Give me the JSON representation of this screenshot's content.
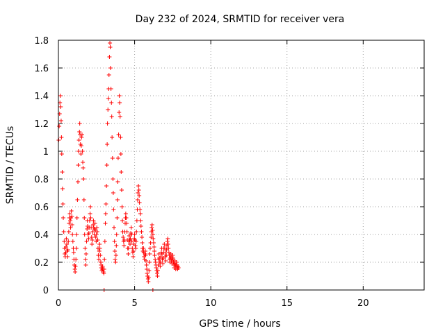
{
  "chart_data": {
    "type": "scatter",
    "title": "Day 232 of 2024, SRMTID for receiver vera",
    "xlabel": "GPS time / hours",
    "ylabel": "SRMTID / TECUs",
    "xlim": [
      0,
      24
    ],
    "ylim": [
      0,
      1.8
    ],
    "xticks": [
      0,
      5,
      10,
      15,
      20
    ],
    "yticks": [
      0,
      0.2,
      0.4,
      0.6,
      0.8,
      1,
      1.2,
      1.4,
      1.6,
      1.8
    ],
    "xtick_labels": [
      "0",
      "5",
      "10",
      "15",
      "20"
    ],
    "ytick_labels": [
      "0",
      "0.2",
      "0.4",
      "0.6",
      "0.8",
      "1",
      "1.2",
      "1.4",
      "1.6",
      "1.8"
    ],
    "grid": true,
    "marker": "+",
    "series": [
      {
        "name": "vera",
        "color": "#ff0000",
        "points": [
          [
            0.02,
            1.08
          ],
          [
            0.05,
            1.18
          ],
          [
            0.08,
            1.27
          ],
          [
            0.1,
            1.35
          ],
          [
            0.12,
            1.4
          ],
          [
            0.15,
            1.32
          ],
          [
            0.18,
            1.22
          ],
          [
            0.2,
            1.1
          ],
          [
            0.22,
            0.98
          ],
          [
            0.25,
            0.85
          ],
          [
            0.27,
            0.73
          ],
          [
            0.3,
            0.62
          ],
          [
            0.32,
            0.52
          ],
          [
            0.35,
            0.42
          ],
          [
            0.38,
            0.35
          ],
          [
            0.4,
            0.3
          ],
          [
            0.42,
            0.26
          ],
          [
            0.45,
            0.24
          ],
          [
            0.48,
            0.27
          ],
          [
            0.5,
            0.31
          ],
          [
            0.52,
            0.37
          ],
          [
            0.55,
            0.33
          ],
          [
            0.58,
            0.28
          ],
          [
            0.6,
            0.24
          ],
          [
            0.62,
            0.29
          ],
          [
            0.65,
            0.35
          ],
          [
            0.68,
            0.42
          ],
          [
            0.7,
            0.48
          ],
          [
            0.72,
            0.52
          ],
          [
            0.75,
            0.55
          ],
          [
            0.78,
            0.5
          ],
          [
            0.8,
            0.45
          ],
          [
            0.82,
            0.52
          ],
          [
            0.85,
            0.57
          ],
          [
            0.88,
            0.53
          ],
          [
            0.9,
            0.47
          ],
          [
            0.92,
            0.4
          ],
          [
            0.95,
            0.35
          ],
          [
            0.98,
            0.3
          ],
          [
            1.0,
            0.27
          ],
          [
            1.02,
            0.22
          ],
          [
            1.05,
            0.18
          ],
          [
            1.08,
            0.15
          ],
          [
            1.1,
            0.13
          ],
          [
            1.12,
            0.17
          ],
          [
            1.15,
            0.22
          ],
          [
            1.18,
            0.3
          ],
          [
            1.2,
            0.4
          ],
          [
            1.22,
            0.52
          ],
          [
            1.25,
            0.65
          ],
          [
            1.28,
            0.78
          ],
          [
            1.3,
            0.9
          ],
          [
            1.32,
            1.0
          ],
          [
            1.35,
            1.08
          ],
          [
            1.38,
            1.14
          ],
          [
            1.4,
            1.2
          ],
          [
            1.42,
            1.12
          ],
          [
            1.45,
            1.05
          ],
          [
            1.48,
            0.98
          ],
          [
            1.5,
            1.04
          ],
          [
            1.52,
            1.1
          ],
          [
            1.55,
            1.12
          ],
          [
            1.58,
            1.0
          ],
          [
            1.6,
            0.92
          ],
          [
            1.62,
            0.88
          ],
          [
            1.65,
            0.8
          ],
          [
            1.68,
            0.65
          ],
          [
            1.7,
            0.52
          ],
          [
            1.72,
            0.4
          ],
          [
            1.75,
            0.3
          ],
          [
            1.78,
            0.22
          ],
          [
            1.8,
            0.18
          ],
          [
            1.82,
            0.26
          ],
          [
            1.85,
            0.35
          ],
          [
            1.88,
            0.44
          ],
          [
            1.9,
            0.5
          ],
          [
            1.92,
            0.46
          ],
          [
            1.95,
            0.4
          ],
          [
            1.98,
            0.37
          ],
          [
            2.0,
            0.41
          ],
          [
            2.02,
            0.45
          ],
          [
            2.05,
            0.5
          ],
          [
            2.08,
            0.55
          ],
          [
            2.1,
            0.6
          ],
          [
            2.12,
            0.52
          ],
          [
            2.15,
            0.45
          ],
          [
            2.18,
            0.38
          ],
          [
            2.2,
            0.33
          ],
          [
            2.22,
            0.36
          ],
          [
            2.25,
            0.42
          ],
          [
            2.28,
            0.47
          ],
          [
            2.3,
            0.5
          ],
          [
            2.32,
            0.45
          ],
          [
            2.35,
            0.4
          ],
          [
            2.38,
            0.44
          ],
          [
            2.4,
            0.48
          ],
          [
            2.42,
            0.43
          ],
          [
            2.45,
            0.38
          ],
          [
            2.48,
            0.35
          ],
          [
            2.5,
            0.4
          ],
          [
            2.52,
            0.45
          ],
          [
            2.55,
            0.42
          ],
          [
            2.58,
            0.36
          ],
          [
            2.6,
            0.3
          ],
          [
            2.62,
            0.25
          ],
          [
            2.65,
            0.22
          ],
          [
            2.68,
            0.28
          ],
          [
            2.7,
            0.33
          ],
          [
            2.72,
            0.3
          ],
          [
            2.75,
            0.25
          ],
          [
            2.78,
            0.2
          ],
          [
            2.8,
            0.18
          ],
          [
            2.82,
            0.16
          ],
          [
            2.85,
            0.14
          ],
          [
            2.88,
            0.15
          ],
          [
            2.9,
            0.17
          ],
          [
            2.92,
            0.15
          ],
          [
            2.95,
            0.13
          ],
          [
            2.98,
            0.12
          ],
          [
            3.0,
            0.15
          ],
          [
            3.02,
            0.22
          ],
          [
            3.05,
            0.35
          ],
          [
            3.08,
            0.48
          ],
          [
            3.1,
            0.55
          ],
          [
            3.12,
            0.62
          ],
          [
            3.15,
            0.75
          ],
          [
            3.18,
            0.9
          ],
          [
            3.2,
            1.05
          ],
          [
            3.22,
            1.2
          ],
          [
            3.25,
            1.3
          ],
          [
            3.28,
            1.38
          ],
          [
            3.3,
            1.45
          ],
          [
            3.32,
            1.55
          ],
          [
            3.35,
            1.68
          ],
          [
            3.38,
            1.78
          ],
          [
            3.4,
            1.75
          ],
          [
            3.42,
            1.6
          ],
          [
            3.45,
            1.45
          ],
          [
            3.48,
            1.35
          ],
          [
            3.5,
            1.25
          ],
          [
            3.52,
            1.1
          ],
          [
            3.55,
            0.95
          ],
          [
            3.58,
            0.8
          ],
          [
            3.6,
            0.7
          ],
          [
            3.62,
            0.58
          ],
          [
            3.65,
            0.45
          ],
          [
            3.68,
            0.35
          ],
          [
            3.7,
            0.28
          ],
          [
            3.72,
            0.22
          ],
          [
            3.75,
            0.2
          ],
          [
            3.78,
            0.25
          ],
          [
            3.8,
            0.32
          ],
          [
            3.82,
            0.4
          ],
          [
            3.85,
            0.52
          ],
          [
            3.88,
            0.65
          ],
          [
            3.9,
            0.78
          ],
          [
            3.92,
            0.95
          ],
          [
            3.95,
            1.12
          ],
          [
            3.98,
            1.28
          ],
          [
            4.0,
            1.4
          ],
          [
            4.02,
            1.35
          ],
          [
            4.05,
            1.25
          ],
          [
            4.08,
            1.1
          ],
          [
            4.1,
            0.98
          ],
          [
            4.12,
            0.85
          ],
          [
            4.15,
            0.72
          ],
          [
            4.18,
            0.6
          ],
          [
            4.2,
            0.5
          ],
          [
            4.22,
            0.42
          ],
          [
            4.25,
            0.38
          ],
          [
            4.28,
            0.35
          ],
          [
            4.3,
            0.32
          ],
          [
            4.32,
            0.36
          ],
          [
            4.35,
            0.42
          ],
          [
            4.38,
            0.48
          ],
          [
            4.4,
            0.52
          ],
          [
            4.42,
            0.55
          ],
          [
            4.45,
            0.52
          ],
          [
            4.48,
            0.48
          ],
          [
            4.5,
            0.42
          ],
          [
            4.52,
            0.36
          ],
          [
            4.55,
            0.3
          ],
          [
            4.58,
            0.26
          ],
          [
            4.6,
            0.3
          ],
          [
            4.62,
            0.35
          ],
          [
            4.65,
            0.39
          ],
          [
            4.68,
            0.36
          ],
          [
            4.7,
            0.33
          ],
          [
            4.72,
            0.37
          ],
          [
            4.75,
            0.41
          ],
          [
            4.78,
            0.45
          ],
          [
            4.8,
            0.4
          ],
          [
            4.82,
            0.35
          ],
          [
            4.85,
            0.3
          ],
          [
            4.88,
            0.27
          ],
          [
            4.9,
            0.24
          ],
          [
            4.92,
            0.28
          ],
          [
            4.95,
            0.33
          ],
          [
            4.98,
            0.37
          ],
          [
            5.0,
            0.4
          ],
          [
            5.02,
            0.36
          ],
          [
            5.05,
            0.32
          ],
          [
            5.08,
            0.3
          ],
          [
            5.1,
            0.35
          ],
          [
            5.12,
            0.42
          ],
          [
            5.15,
            0.5
          ],
          [
            5.18,
            0.58
          ],
          [
            5.2,
            0.65
          ],
          [
            5.22,
            0.7
          ],
          [
            5.25,
            0.75
          ],
          [
            5.28,
            0.72
          ],
          [
            5.3,
            0.68
          ],
          [
            5.32,
            0.63
          ],
          [
            5.35,
            0.58
          ],
          [
            5.38,
            0.55
          ],
          [
            5.4,
            0.5
          ],
          [
            5.42,
            0.46
          ],
          [
            5.45,
            0.42
          ],
          [
            5.48,
            0.38
          ],
          [
            5.5,
            0.34
          ],
          [
            5.52,
            0.3
          ],
          [
            5.55,
            0.28
          ],
          [
            5.58,
            0.3
          ],
          [
            5.6,
            0.27
          ],
          [
            5.62,
            0.24
          ],
          [
            5.65,
            0.22
          ],
          [
            5.68,
            0.26
          ],
          [
            5.7,
            0.28
          ],
          [
            5.72,
            0.25
          ],
          [
            5.75,
            0.21
          ],
          [
            5.78,
            0.18
          ],
          [
            5.8,
            0.15
          ],
          [
            5.82,
            0.12
          ],
          [
            5.85,
            0.1
          ],
          [
            5.88,
            0.08
          ],
          [
            5.9,
            0.06
          ],
          [
            5.92,
            0.09
          ],
          [
            5.95,
            0.14
          ],
          [
            5.98,
            0.2
          ],
          [
            6.0,
            0.26
          ],
          [
            6.02,
            0.3
          ],
          [
            6.05,
            0.34
          ],
          [
            6.08,
            0.38
          ],
          [
            6.1,
            0.42
          ],
          [
            6.12,
            0.45
          ],
          [
            6.15,
            0.47
          ],
          [
            6.18,
            0.43
          ],
          [
            6.2,
            0.4
          ],
          [
            6.22,
            0.37
          ],
          [
            6.25,
            0.34
          ],
          [
            6.28,
            0.31
          ],
          [
            6.3,
            0.28
          ],
          [
            6.32,
            0.25
          ],
          [
            6.35,
            0.22
          ],
          [
            6.38,
            0.2
          ],
          [
            6.4,
            0.18
          ],
          [
            6.42,
            0.16
          ],
          [
            6.45,
            0.14
          ],
          [
            6.48,
            0.12
          ],
          [
            6.5,
            0.1
          ],
          [
            6.52,
            0.14
          ],
          [
            6.55,
            0.18
          ],
          [
            6.58,
            0.22
          ],
          [
            6.6,
            0.26
          ],
          [
            6.62,
            0.23
          ],
          [
            6.65,
            0.2
          ],
          [
            6.68,
            0.17
          ],
          [
            6.7,
            0.2
          ],
          [
            6.72,
            0.24
          ],
          [
            6.75,
            0.27
          ],
          [
            6.78,
            0.3
          ],
          [
            6.8,
            0.26
          ],
          [
            6.82,
            0.22
          ],
          [
            6.85,
            0.19
          ],
          [
            6.88,
            0.23
          ],
          [
            6.9,
            0.27
          ],
          [
            6.92,
            0.3
          ],
          [
            6.95,
            0.33
          ],
          [
            6.98,
            0.3
          ],
          [
            7.0,
            0.27
          ],
          [
            7.02,
            0.24
          ],
          [
            7.05,
            0.21
          ],
          [
            7.08,
            0.25
          ],
          [
            7.1,
            0.29
          ],
          [
            7.12,
            0.32
          ],
          [
            7.15,
            0.35
          ],
          [
            7.18,
            0.37
          ],
          [
            7.2,
            0.33
          ],
          [
            7.22,
            0.3
          ],
          [
            7.25,
            0.27
          ],
          [
            7.28,
            0.25
          ],
          [
            7.3,
            0.22
          ],
          [
            7.32,
            0.2
          ],
          [
            7.35,
            0.23
          ],
          [
            7.38,
            0.26
          ],
          [
            7.4,
            0.24
          ],
          [
            7.42,
            0.21
          ],
          [
            7.45,
            0.19
          ],
          [
            7.48,
            0.22
          ],
          [
            7.5,
            0.25
          ],
          [
            7.52,
            0.23
          ],
          [
            7.55,
            0.2
          ],
          [
            7.58,
            0.18
          ],
          [
            7.6,
            0.16
          ],
          [
            7.62,
            0.19
          ],
          [
            7.65,
            0.21
          ],
          [
            7.68,
            0.18
          ],
          [
            7.7,
            0.15
          ],
          [
            7.72,
            0.17
          ],
          [
            7.75,
            0.2
          ],
          [
            7.78,
            0.18
          ],
          [
            7.8,
            0.16
          ],
          [
            7.82,
            0.15
          ],
          [
            7.85,
            0.17
          ],
          [
            7.88,
            0.16
          ],
          [
            3.0,
            0.0
          ],
          [
            6.2,
            0.0
          ]
        ]
      }
    ]
  }
}
